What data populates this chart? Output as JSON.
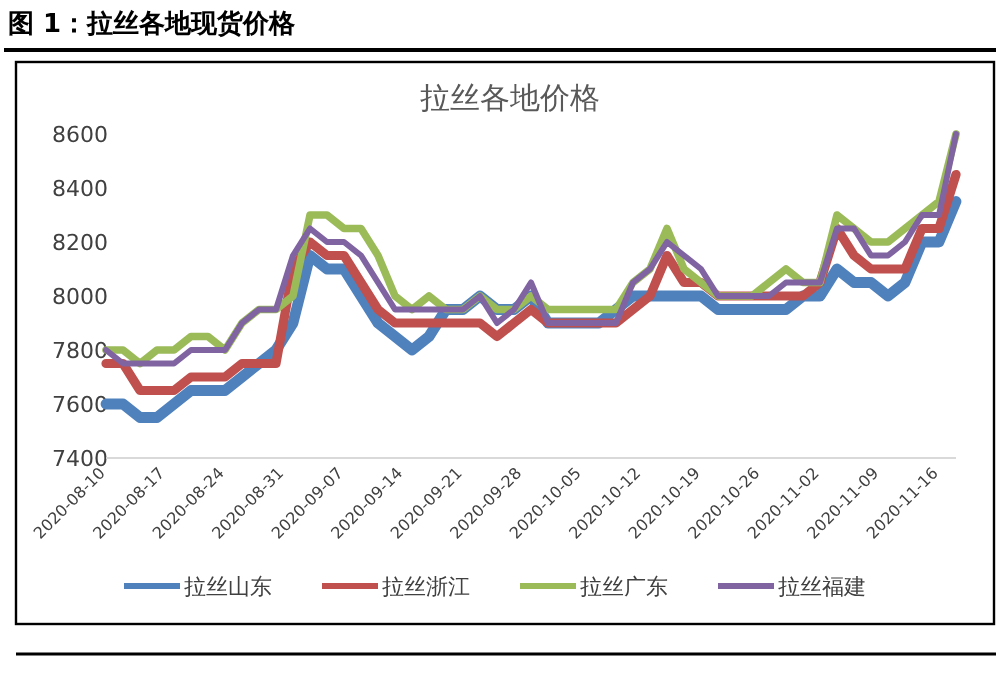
{
  "chart_data": {
    "type": "line",
    "title": "图 1：拉丝各地现货价格",
    "subtitle": "拉丝各地价格",
    "x": [
      "2020-08-10",
      "2020-08-12",
      "2020-08-14",
      "2020-08-16",
      "2020-08-18",
      "2020-08-20",
      "2020-08-22",
      "2020-08-24",
      "2020-08-26",
      "2020-08-28",
      "2020-08-30",
      "2020-09-01",
      "2020-09-03",
      "2020-09-05",
      "2020-09-07",
      "2020-09-09",
      "2020-09-11",
      "2020-09-13",
      "2020-09-15",
      "2020-09-17",
      "2020-09-19",
      "2020-09-21",
      "2020-09-23",
      "2020-09-25",
      "2020-09-27",
      "2020-09-29",
      "2020-10-01",
      "2020-10-03",
      "2020-10-05",
      "2020-10-07",
      "2020-10-09",
      "2020-10-11",
      "2020-10-13",
      "2020-10-15",
      "2020-10-17",
      "2020-10-19",
      "2020-10-21",
      "2020-10-23",
      "2020-10-25",
      "2020-10-27",
      "2020-10-29",
      "2020-10-31",
      "2020-11-02",
      "2020-11-04",
      "2020-11-06",
      "2020-11-08",
      "2020-11-10",
      "2020-11-12",
      "2020-11-14",
      "2020-11-16",
      "2020-11-18"
    ],
    "series": [
      {
        "name": "拉丝山东",
        "color": "#4f81bd",
        "values": [
          7600,
          7600,
          7550,
          7550,
          7600,
          7650,
          7650,
          7650,
          7700,
          7750,
          7800,
          7900,
          8150,
          8100,
          8100,
          8000,
          7900,
          7850,
          7800,
          7850,
          7950,
          7950,
          8000,
          7950,
          7950,
          8000,
          7900,
          7900,
          7900,
          7900,
          7950,
          8000,
          8000,
          8000,
          8000,
          8000,
          7950,
          7950,
          7950,
          7950,
          7950,
          8000,
          8000,
          8100,
          8050,
          8050,
          8000,
          8050,
          8200,
          8200,
          8350
        ]
      },
      {
        "name": "拉丝浙江",
        "color": "#c0504d",
        "values": [
          7750,
          7750,
          7650,
          7650,
          7650,
          7700,
          7700,
          7700,
          7750,
          7750,
          7750,
          8100,
          8200,
          8150,
          8150,
          8050,
          7950,
          7900,
          7900,
          7900,
          7900,
          7900,
          7900,
          7850,
          7900,
          7950,
          7900,
          7900,
          7900,
          7900,
          7900,
          7950,
          8000,
          8150,
          8050,
          8050,
          8000,
          8000,
          8000,
          8000,
          8000,
          8000,
          8050,
          8250,
          8150,
          8100,
          8100,
          8100,
          8250,
          8250,
          8450
        ]
      },
      {
        "name": "拉丝广东",
        "color": "#9bbb59",
        "values": [
          7800,
          7800,
          7750,
          7800,
          7800,
          7850,
          7850,
          7800,
          7900,
          7950,
          7950,
          8000,
          8300,
          8300,
          8250,
          8250,
          8150,
          8000,
          7950,
          8000,
          7950,
          7950,
          8000,
          7950,
          7950,
          8000,
          7950,
          7950,
          7950,
          7950,
          7950,
          8050,
          8100,
          8250,
          8100,
          8050,
          8000,
          8000,
          8000,
          8050,
          8100,
          8050,
          8050,
          8300,
          8250,
          8200,
          8200,
          8250,
          8300,
          8350,
          8600
        ]
      },
      {
        "name": "拉丝福建",
        "color": "#8064a2",
        "values": [
          7800,
          7750,
          7750,
          7750,
          7750,
          7800,
          7800,
          7800,
          7900,
          7950,
          7950,
          8150,
          8250,
          8200,
          8200,
          8150,
          8050,
          7950,
          7950,
          7950,
          7950,
          7950,
          8000,
          7900,
          7950,
          8050,
          7900,
          7900,
          7900,
          7900,
          7900,
          8050,
          8100,
          8200,
          8150,
          8100,
          8000,
          8000,
          8000,
          8000,
          8050,
          8050,
          8050,
          8250,
          8250,
          8150,
          8150,
          8200,
          8300,
          8300,
          8600
        ]
      }
    ],
    "xlim": [
      "2020-08-10",
      "2020-11-18"
    ],
    "xticks": [
      "2020-08-10",
      "2020-08-17",
      "2020-08-24",
      "2020-08-31",
      "2020-09-07",
      "2020-09-14",
      "2020-09-21",
      "2020-09-28",
      "2020-10-05",
      "2020-10-12",
      "2020-10-19",
      "2020-10-26",
      "2020-11-02",
      "2020-11-09",
      "2020-11-16"
    ],
    "ylim": [
      7400,
      8600
    ],
    "yticks": [
      7400,
      7600,
      7800,
      8000,
      8200,
      8400,
      8600
    ],
    "legend": "bottom",
    "marker": "none",
    "line_style": "solid"
  }
}
